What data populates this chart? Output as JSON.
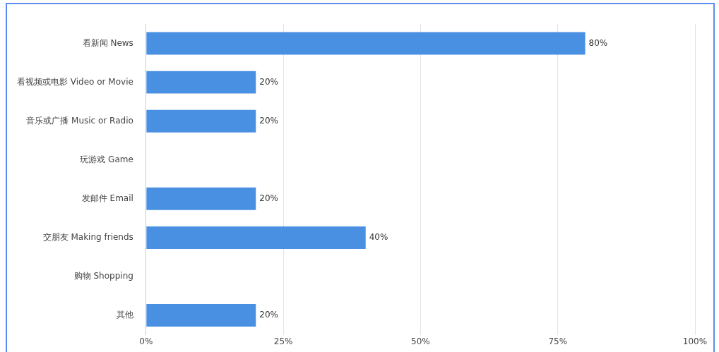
{
  "chart_data": {
    "type": "bar",
    "orientation": "horizontal",
    "categories": [
      "看新闻 News",
      "看视频或电影 Video or Movie",
      "音乐或广播 Music or Radio",
      "玩游戏 Game",
      "发邮件 Email",
      "交朋友 Making friends",
      "购物 Shopping",
      "其他"
    ],
    "values": [
      80,
      20,
      20,
      0,
      20,
      40,
      0,
      20
    ],
    "value_labels": [
      "80%",
      "20%",
      "20%",
      null,
      "20%",
      "40%",
      null,
      "20%"
    ],
    "color": "#4a90e2",
    "xlim": [
      0,
      100
    ],
    "xticks": [
      {
        "value": 0,
        "label": "0%"
      },
      {
        "value": 25,
        "label": "25%"
      },
      {
        "value": 50,
        "label": "50%"
      },
      {
        "value": 75,
        "label": "75%"
      },
      {
        "value": 100,
        "label": "100%"
      }
    ],
    "grid": "x",
    "legend": false
  }
}
